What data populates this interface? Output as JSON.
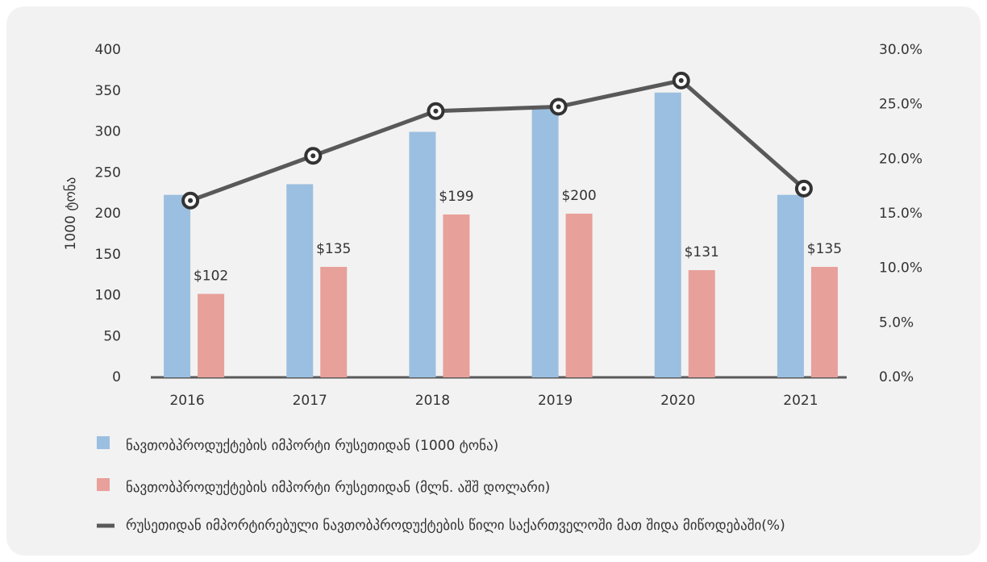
{
  "chart_data": {
    "type": "bar-line",
    "y_label": "1000 ტონა",
    "categories": [
      "2016",
      "2017",
      "2018",
      "2019",
      "2020",
      "2021"
    ],
    "series": [
      {
        "name": "ნავთობპროდუქტების იმპორტი რუსეთიდან (1000 ტონა)",
        "type": "bar",
        "color": "#9bbfe0",
        "values": [
          223,
          236,
          300,
          332,
          348,
          223
        ]
      },
      {
        "name": "ნავთობპროდუქტების იმპორტი რუსეთიდან (მლნ. აშშ დოლარი)",
        "type": "bar",
        "color": "#e8a09a",
        "values": [
          102,
          135,
          199,
          200,
          131,
          135
        ],
        "value_labels": [
          "$102",
          "$135",
          "$199",
          "$200",
          "$131",
          "$135"
        ]
      },
      {
        "name": "რუსეთიდან იმპორტირებული ნავთობპროდუქტების წილი საქართველოში მათ შიდა მიწოდებაში(%)",
        "type": "line",
        "axis": "y2",
        "color": "#595959",
        "values": [
          16.2,
          20.3,
          24.4,
          24.8,
          27.2,
          17.3
        ]
      }
    ],
    "ylim": [
      0,
      400
    ],
    "yticks": [
      0,
      50,
      100,
      150,
      200,
      250,
      300,
      350,
      400
    ],
    "y2lim": [
      0,
      30
    ],
    "y2ticks": [
      {
        "value": 0,
        "label": "0.0%"
      },
      {
        "value": 5,
        "label": "5.0%"
      },
      {
        "value": 10,
        "label": "10.0%"
      },
      {
        "value": 15,
        "label": "15.0%"
      },
      {
        "value": 20,
        "label": "20.0%"
      },
      {
        "value": 25,
        "label": "25.0%"
      },
      {
        "value": 30,
        "label": "30.0%"
      }
    ],
    "grid": false
  }
}
